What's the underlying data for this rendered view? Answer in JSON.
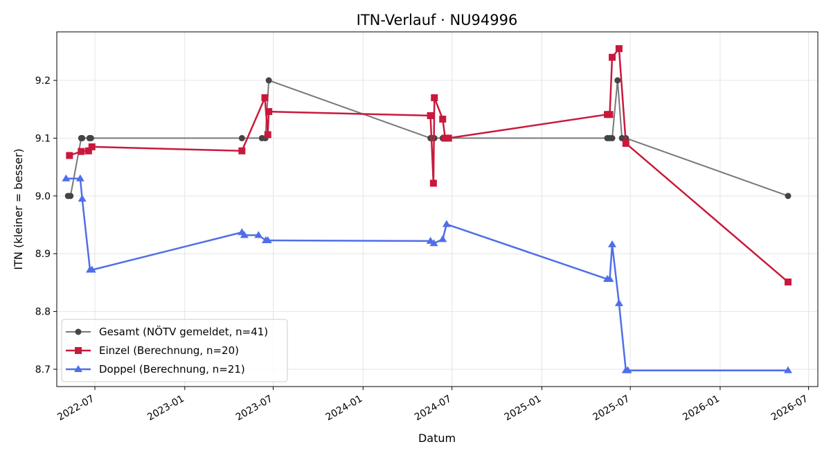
{
  "chart_data": {
    "type": "line",
    "title": "ITN-Verlauf · NU94996",
    "xlabel": "Datum",
    "ylabel": "ITN  (kleiner = besser)",
    "xlim": [
      "2022-04-14",
      "2026-07-20"
    ],
    "ylim": [
      8.67,
      9.284
    ],
    "xticks": [
      "2022-07",
      "2023-01",
      "2023-07",
      "2024-01",
      "2024-07",
      "2025-01",
      "2025-07",
      "2026-01",
      "2026-07"
    ],
    "yticks": [
      8.7,
      8.8,
      8.9,
      9.0,
      9.1,
      9.2
    ],
    "grid": true,
    "legend": "lower-left",
    "series": [
      {
        "name": "Gesamt (NÖTV gemeldet, n=41)",
        "color": "#444444",
        "marker": "circle",
        "points": [
          [
            "2022-05-07",
            9.0
          ],
          [
            "2022-05-12",
            9.0
          ],
          [
            "2022-06-03",
            9.1
          ],
          [
            "2022-06-05",
            9.1
          ],
          [
            "2022-06-20",
            9.1
          ],
          [
            "2022-06-23",
            9.1
          ],
          [
            "2023-04-28",
            9.1
          ],
          [
            "2023-06-08",
            9.1
          ],
          [
            "2023-06-15",
            9.1
          ],
          [
            "2023-06-22",
            9.2
          ],
          [
            "2024-05-18",
            9.1
          ],
          [
            "2024-05-22",
            9.1
          ],
          [
            "2024-05-26",
            9.1
          ],
          [
            "2024-06-12",
            9.1
          ],
          [
            "2024-06-15",
            9.1
          ],
          [
            "2024-06-20",
            9.1
          ],
          [
            "2024-06-24",
            9.1
          ],
          [
            "2025-05-15",
            9.1
          ],
          [
            "2025-05-20",
            9.1
          ],
          [
            "2025-05-25",
            9.1
          ],
          [
            "2025-06-05",
            9.2
          ],
          [
            "2025-06-14",
            9.1
          ],
          [
            "2025-06-22",
            9.1
          ],
          [
            "2026-05-20",
            9.0
          ]
        ]
      },
      {
        "name": "Einzel (Berechnung, n=20)",
        "color": "#c8193c",
        "marker": "square",
        "points": [
          [
            "2022-05-10",
            9.07
          ],
          [
            "2022-06-03",
            9.077
          ],
          [
            "2022-06-18",
            9.078
          ],
          [
            "2022-06-25",
            9.085
          ],
          [
            "2023-04-28",
            9.078
          ],
          [
            "2023-06-14",
            9.17
          ],
          [
            "2023-06-20",
            9.106
          ],
          [
            "2023-06-22",
            9.146
          ],
          [
            "2024-05-18",
            9.139
          ],
          [
            "2024-05-24",
            9.022
          ],
          [
            "2024-05-26",
            9.17
          ],
          [
            "2024-06-12",
            9.133
          ],
          [
            "2024-06-17",
            9.1
          ],
          [
            "2024-06-24",
            9.1
          ],
          [
            "2025-05-15",
            9.141
          ],
          [
            "2025-05-20",
            9.141
          ],
          [
            "2025-05-25",
            9.24
          ],
          [
            "2025-06-08",
            9.255
          ],
          [
            "2025-06-22",
            9.091
          ],
          [
            "2026-05-20",
            8.851
          ]
        ]
      },
      {
        "name": "Doppel (Berechnung, n=21)",
        "color": "#4f6ee8",
        "marker": "triangle",
        "points": [
          [
            "2022-05-03",
            9.03
          ],
          [
            "2022-06-01",
            9.03
          ],
          [
            "2022-06-05",
            8.995
          ],
          [
            "2022-06-21",
            8.872
          ],
          [
            "2022-06-25",
            8.872
          ],
          [
            "2023-04-28",
            8.937
          ],
          [
            "2023-05-03",
            8.932
          ],
          [
            "2023-06-01",
            8.932
          ],
          [
            "2023-06-16",
            8.923
          ],
          [
            "2023-06-20",
            8.923
          ],
          [
            "2024-05-18",
            8.922
          ],
          [
            "2024-05-25",
            8.918
          ],
          [
            "2024-06-12",
            8.925
          ],
          [
            "2024-06-20",
            8.951
          ],
          [
            "2025-05-15",
            8.856
          ],
          [
            "2025-05-20",
            8.856
          ],
          [
            "2025-05-25",
            8.916
          ],
          [
            "2025-06-08",
            8.814
          ],
          [
            "2025-06-22",
            8.698
          ],
          [
            "2025-06-26",
            8.698
          ],
          [
            "2026-05-20",
            8.698
          ]
        ]
      }
    ]
  }
}
